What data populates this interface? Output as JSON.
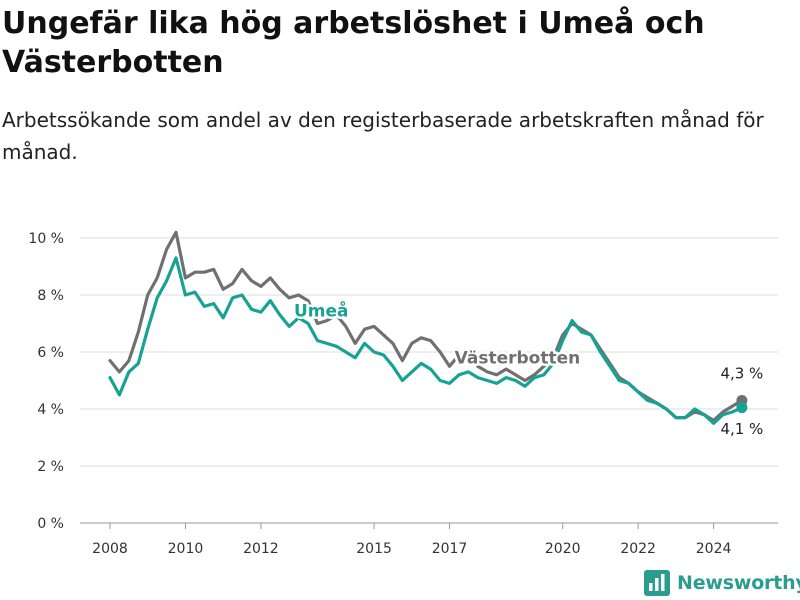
{
  "header": {
    "title": "Ungefär lika hög arbetslöshet i Umeå och Västerbotten",
    "subtitle": "Arbetssökande som andel av den registerbaserade arbetskraften månad för månad."
  },
  "branding": {
    "name": "Newsworthy",
    "icon": "bar-chart-logo-icon"
  },
  "chart_data": {
    "type": "line",
    "title": "Ungefär lika hög arbetslöshet i Umeå och Västerbotten",
    "subtitle": "Arbetssökande som andel av den registerbaserade arbetskraften månad för månad.",
    "xlabel": "",
    "ylabel": "",
    "ylim": [
      0,
      10
    ],
    "y_ticks": [
      {
        "value": 0,
        "label": "0 %"
      },
      {
        "value": 2,
        "label": "2 %"
      },
      {
        "value": 4,
        "label": "4 %"
      },
      {
        "value": 6,
        "label": "6 %"
      },
      {
        "value": 8,
        "label": "8 %"
      },
      {
        "value": 10,
        "label": "10 %"
      }
    ],
    "x_ticks": [
      {
        "value": 2008,
        "label": "2008"
      },
      {
        "value": 2010,
        "label": "2010"
      },
      {
        "value": 2012,
        "label": "2012"
      },
      {
        "value": 2015,
        "label": "2015"
      },
      {
        "value": 2017,
        "label": "2017"
      },
      {
        "value": 2020,
        "label": "2020"
      },
      {
        "value": 2022,
        "label": "2022"
      },
      {
        "value": 2024,
        "label": "2024"
      }
    ],
    "grid": true,
    "legend": "inline labels",
    "series": [
      {
        "name": "Västerbotten",
        "color": "#707070",
        "label_position": [
          2018.8,
          5.6
        ],
        "x": [
          2008.0,
          2008.25,
          2008.5,
          2008.75,
          2009.0,
          2009.25,
          2009.5,
          2009.75,
          2010.0,
          2010.25,
          2010.5,
          2010.75,
          2011.0,
          2011.25,
          2011.5,
          2011.75,
          2012.0,
          2012.25,
          2012.5,
          2012.75,
          2013.0,
          2013.25,
          2013.5,
          2013.75,
          2014.0,
          2014.25,
          2014.5,
          2014.75,
          2015.0,
          2015.25,
          2015.5,
          2015.75,
          2016.0,
          2016.25,
          2016.5,
          2016.75,
          2017.0,
          2017.25,
          2017.5,
          2017.75,
          2018.0,
          2018.25,
          2018.5,
          2018.75,
          2019.0,
          2019.25,
          2019.5,
          2019.75,
          2020.0,
          2020.25,
          2020.5,
          2020.75,
          2021.0,
          2021.25,
          2021.5,
          2021.75,
          2022.0,
          2022.25,
          2022.5,
          2022.75,
          2023.0,
          2023.25,
          2023.5,
          2023.75,
          2024.0,
          2024.25,
          2024.5,
          2024.75
        ],
        "values": [
          5.7,
          5.3,
          5.7,
          6.7,
          8.0,
          8.6,
          9.6,
          10.2,
          8.6,
          8.8,
          8.8,
          8.9,
          8.2,
          8.4,
          8.9,
          8.5,
          8.3,
          8.6,
          8.2,
          7.9,
          8.0,
          7.8,
          7.0,
          7.1,
          7.3,
          6.9,
          6.3,
          6.8,
          6.9,
          6.6,
          6.3,
          5.7,
          6.3,
          6.5,
          6.4,
          6.0,
          5.5,
          5.9,
          6.0,
          5.5,
          5.3,
          5.2,
          5.4,
          5.2,
          5.0,
          5.2,
          5.5,
          5.8,
          6.6,
          7.0,
          6.8,
          6.6,
          6.1,
          5.6,
          5.1,
          4.9,
          4.6,
          4.4,
          4.2,
          4.0,
          3.7,
          3.7,
          3.9,
          3.8,
          3.6,
          3.9,
          4.1,
          4.3
        ]
      },
      {
        "name": "Umeå",
        "color": "#16a394",
        "label_position": [
          2013.6,
          7.25
        ],
        "x": [
          2008.0,
          2008.25,
          2008.5,
          2008.75,
          2009.0,
          2009.25,
          2009.5,
          2009.75,
          2010.0,
          2010.25,
          2010.5,
          2010.75,
          2011.0,
          2011.25,
          2011.5,
          2011.75,
          2012.0,
          2012.25,
          2012.5,
          2012.75,
          2013.0,
          2013.25,
          2013.5,
          2013.75,
          2014.0,
          2014.25,
          2014.5,
          2014.75,
          2015.0,
          2015.25,
          2015.5,
          2015.75,
          2016.0,
          2016.25,
          2016.5,
          2016.75,
          2017.0,
          2017.25,
          2017.5,
          2017.75,
          2018.0,
          2018.25,
          2018.5,
          2018.75,
          2019.0,
          2019.25,
          2019.5,
          2019.75,
          2020.0,
          2020.25,
          2020.5,
          2020.75,
          2021.0,
          2021.25,
          2021.5,
          2021.75,
          2022.0,
          2022.25,
          2022.5,
          2022.75,
          2023.0,
          2023.25,
          2023.5,
          2023.75,
          2024.0,
          2024.25,
          2024.5,
          2024.75
        ],
        "values": [
          5.1,
          4.5,
          5.3,
          5.6,
          6.8,
          7.9,
          8.5,
          9.3,
          8.0,
          8.1,
          7.6,
          7.7,
          7.2,
          7.9,
          8.0,
          7.5,
          7.4,
          7.8,
          7.3,
          6.9,
          7.2,
          7.0,
          6.4,
          6.3,
          6.2,
          6.0,
          5.8,
          6.3,
          6.0,
          5.9,
          5.5,
          5.0,
          5.3,
          5.6,
          5.4,
          5.0,
          4.9,
          5.2,
          5.3,
          5.1,
          5.0,
          4.9,
          5.1,
          5.0,
          4.8,
          5.1,
          5.2,
          5.6,
          6.4,
          7.1,
          6.7,
          6.6,
          6.0,
          5.5,
          5.0,
          4.9,
          4.6,
          4.3,
          4.2,
          4.0,
          3.7,
          3.7,
          4.0,
          3.8,
          3.5,
          3.8,
          3.9,
          4.05
        ]
      }
    ],
    "end_labels": [
      {
        "series": "Västerbotten",
        "value": 4.3,
        "label": "4,3 %"
      },
      {
        "series": "Umeå",
        "value": 4.1,
        "label": "4,1 %"
      }
    ]
  }
}
